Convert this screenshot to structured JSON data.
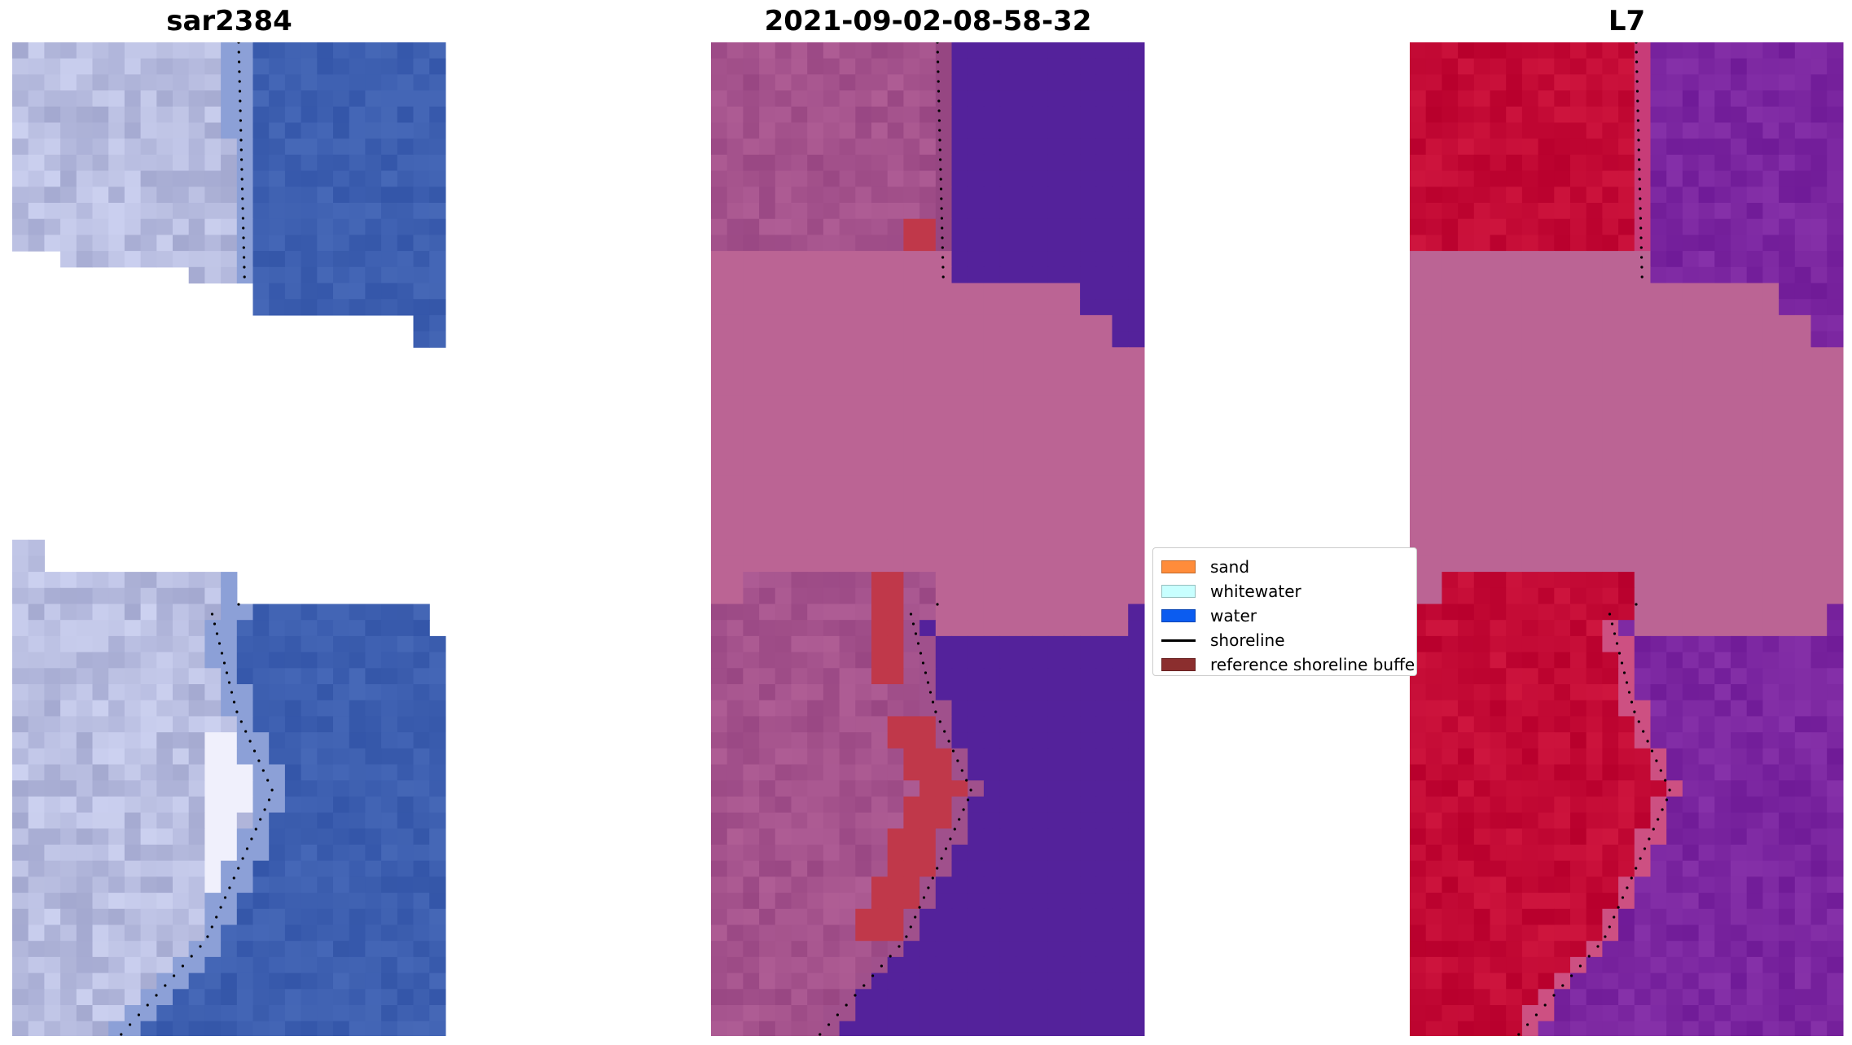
{
  "panels": [
    {
      "title": "sar2384",
      "style": "rgb"
    },
    {
      "title": "2021-09-02-08-58-32",
      "style": "classified"
    },
    {
      "title": "L7",
      "style": "index"
    }
  ],
  "legend": {
    "items": [
      {
        "label": "sand",
        "color": "#ff8c3a",
        "kind": "patch"
      },
      {
        "label": "whitewater",
        "color": "#c8ffff",
        "kind": "patch"
      },
      {
        "label": "water",
        "color": "#0b5cf0",
        "kind": "patch"
      },
      {
        "label": "shoreline",
        "color": "#000000",
        "kind": "line"
      },
      {
        "label": "reference shoreline buffer",
        "color": "#8b2e2e",
        "kind": "patch"
      }
    ]
  },
  "colors": {
    "land_rgb": "#b8bde0",
    "water_rgb": "#3d5fb0",
    "land_classified": "#a4528c",
    "water_classified": "#54229b",
    "buffer_overlay": "#bb6494",
    "buffer_red": "#c0384a",
    "land_index": "#c30a35",
    "water_index": "#7b26a0",
    "shoreline_dots": "#000000"
  }
}
